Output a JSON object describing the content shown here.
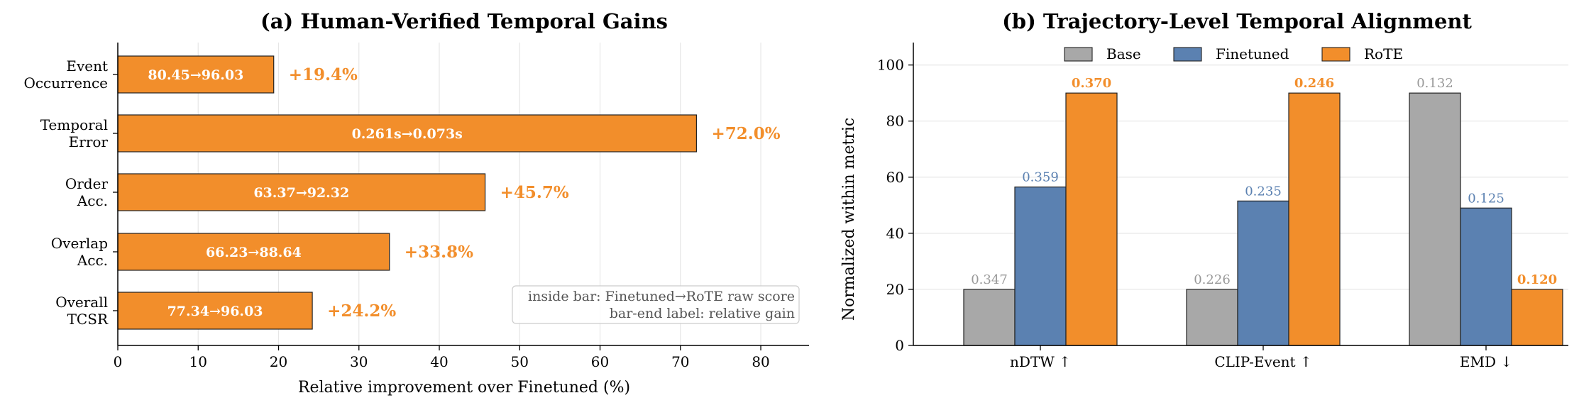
{
  "colors": {
    "orange": "#F28E2B",
    "blue": "#5B81B1",
    "gray": "#A8A8A8",
    "gain_text": "#F28E2B",
    "grid": "#E6E6E6"
  },
  "chart_data": [
    {
      "type": "bar",
      "orientation": "horizontal",
      "title": "(a) Human-Verified Temporal Gains",
      "xlabel": "Relative improvement over Finetuned (%)",
      "xlim": [
        0,
        86
      ],
      "xticks": [
        0,
        10,
        20,
        30,
        40,
        50,
        60,
        70,
        80
      ],
      "grid": "vertical",
      "categories": [
        [
          "Event",
          "Occurrence"
        ],
        [
          "Temporal",
          "Error"
        ],
        [
          "Order",
          "Acc."
        ],
        [
          "Overlap",
          "Acc."
        ],
        [
          "Overall",
          "TCSR"
        ]
      ],
      "values": [
        19.4,
        72.0,
        45.7,
        33.8,
        24.2
      ],
      "inside_labels": [
        "80.45→96.03",
        "0.261s→0.073s",
        "63.37→92.32",
        "66.23→88.64",
        "77.34→96.03"
      ],
      "end_labels": [
        "+19.4%",
        "+72.0%",
        "+45.7%",
        "+33.8%",
        "+24.2%"
      ],
      "annotation": [
        "inside bar: Finetuned→RoTE raw score",
        "bar-end label: relative gain"
      ],
      "annotation_placement": "bottom-right"
    },
    {
      "type": "bar",
      "orientation": "vertical",
      "title": "(b) Trajectory-Level Temporal Alignment",
      "ylabel": "Normalized within metric",
      "ylim": [
        0,
        108
      ],
      "yticks": [
        0,
        20,
        40,
        60,
        80,
        100
      ],
      "grid": "horizontal",
      "legend_placement": "top-center",
      "categories": [
        "nDTW ↑",
        "CLIP-Event ↑",
        "EMD ↓"
      ],
      "series": [
        {
          "name": "Base",
          "values": [
            20,
            20,
            90
          ],
          "labels": [
            "0.347",
            "0.226",
            "0.132"
          ]
        },
        {
          "name": "Finetuned",
          "values": [
            56.5,
            51.5,
            49
          ],
          "labels": [
            "0.359",
            "0.235",
            "0.125"
          ]
        },
        {
          "name": "RoTE",
          "values": [
            90,
            90,
            20
          ],
          "labels": [
            "0.370",
            "0.246",
            "0.120"
          ]
        }
      ]
    }
  ]
}
